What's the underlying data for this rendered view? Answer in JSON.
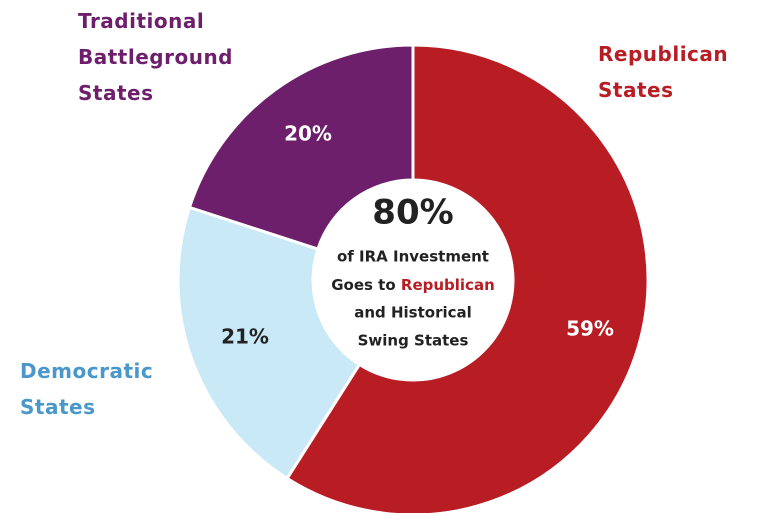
{
  "chart_data": {
    "type": "donut",
    "categories": [
      "Republican States",
      "Democratic States",
      "Traditional Battleground States"
    ],
    "values": [
      59,
      21,
      20
    ],
    "value_labels": [
      "59%",
      "21%",
      "20%"
    ],
    "colors": [
      "#b81d24",
      "#c9e9f6",
      "#6d1f6b"
    ],
    "label_colors": [
      "#b81d24",
      "#4a97c9",
      "#6d1f6b"
    ],
    "value_label_colors": [
      "#ffffff",
      "#222222",
      "#ffffff"
    ],
    "center_text": {
      "headline": "80%",
      "lines": [
        "of IRA Investment",
        "Goes to",
        "Republican",
        "and Historical",
        "Swing States"
      ]
    }
  }
}
